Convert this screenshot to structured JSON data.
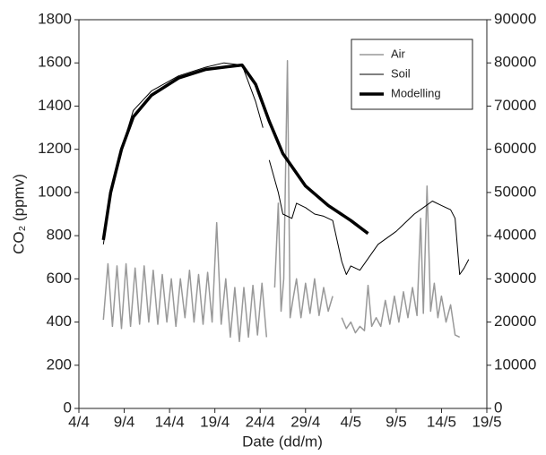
{
  "chart_data": {
    "type": "line",
    "xlabel": "Date (dd/m)",
    "ylabel": "CO₂ (ppmv)",
    "xlim": [
      0,
      45
    ],
    "xticks": [
      {
        "value": 0,
        "label": "4/4"
      },
      {
        "value": 5,
        "label": "9/4"
      },
      {
        "value": 10,
        "label": "14/4"
      },
      {
        "value": 15,
        "label": "19/4"
      },
      {
        "value": 20,
        "label": "24/4"
      },
      {
        "value": 25,
        "label": "29/4"
      },
      {
        "value": 30,
        "label": "4/5"
      },
      {
        "value": 35,
        "label": "9/5"
      },
      {
        "value": 40,
        "label": "14/5"
      },
      {
        "value": 45,
        "label": "19/5"
      }
    ],
    "ylim": [
      0,
      1800
    ],
    "yticks": [
      0,
      200,
      400,
      600,
      800,
      1000,
      1200,
      1400,
      1600,
      1800
    ],
    "y2lim": [
      0,
      90000
    ],
    "y2ticks": [
      0,
      10000,
      20000,
      30000,
      40000,
      50000,
      60000,
      70000,
      80000,
      90000
    ],
    "grid": false,
    "legend": "upper right",
    "series": [
      {
        "name": "Air",
        "color": "#999999",
        "linewidth": 1.5,
        "x": [
          2.7,
          3.2,
          3.7,
          4.2,
          4.7,
          5.2,
          5.7,
          6.2,
          6.7,
          7.2,
          7.7,
          8.2,
          8.7,
          9.2,
          9.7,
          10.2,
          10.7,
          11.2,
          11.7,
          12.2,
          12.7,
          13.2,
          13.7,
          14.2,
          14.7,
          15.2,
          15.7,
          16.2,
          16.7,
          17.2,
          17.7,
          18.2,
          18.7,
          19.2,
          19.7,
          20.2,
          20.7,
          21.1,
          21.6,
          22,
          22.3,
          22.6,
          23,
          23.3,
          23.6,
          24,
          24.5,
          25,
          25.5,
          26,
          26.5,
          27,
          27.5,
          28,
          28.5,
          29,
          29.5,
          30,
          30.5,
          31,
          31.5,
          31.9,
          32.3,
          32.8,
          33.3,
          33.8,
          34.3,
          34.8,
          35.3,
          35.8,
          36.3,
          36.8,
          37.3,
          37.7,
          38,
          38.4,
          38.8,
          39.2,
          39.6,
          40,
          40.5,
          41,
          41.5,
          42
        ],
        "values": [
          410,
          670,
          380,
          660,
          370,
          670,
          380,
          650,
          390,
          660,
          400,
          640,
          390,
          620,
          400,
          600,
          380,
          600,
          420,
          640,
          400,
          620,
          390,
          630,
          400,
          860,
          390,
          600,
          330,
          560,
          310,
          560,
          330,
          570,
          340,
          580,
          330,
          null,
          560,
          950,
          450,
          600,
          1610,
          420,
          500,
          600,
          420,
          580,
          440,
          600,
          430,
          560,
          450,
          520,
          null,
          420,
          370,
          400,
          350,
          380,
          360,
          570,
          380,
          420,
          380,
          500,
          390,
          520,
          400,
          540,
          420,
          560,
          430,
          880,
          440,
          1030,
          450,
          580,
          420,
          520,
          400,
          480,
          340,
          330
        ]
      },
      {
        "name": "Soil",
        "color": "#000000",
        "linewidth": 1,
        "x": [
          2.7,
          3.5,
          4.7,
          6,
          8,
          11,
          14,
          16,
          18,
          19.5,
          20.3,
          20.8,
          21,
          22,
          22.5,
          23.5,
          24,
          25,
          26,
          27,
          28,
          29,
          29.5,
          30,
          31,
          32,
          33,
          35,
          37,
          38,
          39,
          40,
          41,
          41.5,
          42,
          42.5,
          43
        ],
        "values": [
          760,
          980,
          1200,
          1380,
          1470,
          1540,
          1580,
          1600,
          1590,
          1420,
          1300,
          null,
          1150,
          1000,
          900,
          880,
          950,
          930,
          900,
          890,
          870,
          680,
          620,
          660,
          640,
          700,
          760,
          820,
          900,
          930,
          960,
          940,
          920,
          880,
          620,
          650,
          690
        ]
      },
      {
        "name": "Modelling",
        "color": "#000000",
        "linewidth": 3.5,
        "x": [
          2.7,
          3.5,
          4.7,
          6,
          8,
          11,
          14,
          18,
          19.5,
          21,
          22.5,
          25,
          27.5,
          30,
          31.9
        ],
        "values": [
          780,
          1000,
          1200,
          1350,
          1450,
          1530,
          1570,
          1590,
          1500,
          1330,
          1180,
          1030,
          940,
          870,
          810
        ]
      }
    ]
  }
}
